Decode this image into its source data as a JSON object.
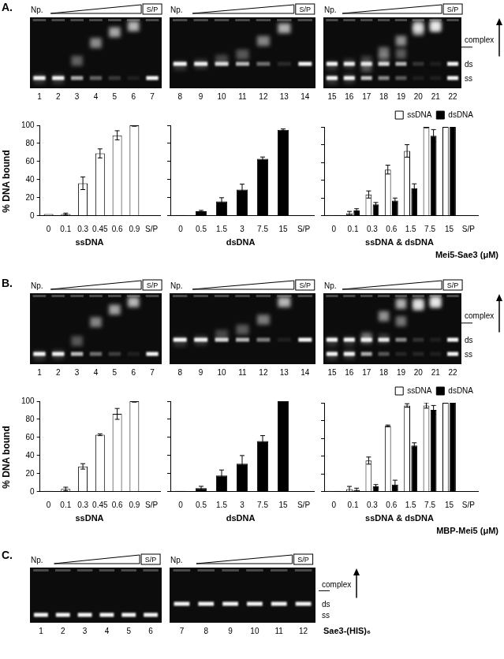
{
  "chart_data": [
    {
      "type": "bar",
      "title": "ssDNA",
      "categories": [
        "0",
        "0.1",
        "0.3",
        "0.45",
        "0.6",
        "0.9",
        "S/P"
      ],
      "values": [
        2,
        2,
        36,
        69,
        89,
        100,
        null
      ],
      "errors": [
        0,
        1,
        7,
        5,
        5,
        1,
        null
      ],
      "color": "#ffffff",
      "lanes": [
        1,
        2,
        3,
        4,
        5,
        6,
        7
      ],
      "ylim": [
        0,
        100
      ],
      "yticks": [
        0,
        20,
        40,
        60,
        80,
        100
      ],
      "grid": false
    },
    {
      "type": "bar",
      "title": "dsDNA",
      "categories": [
        "0",
        "0.5",
        "1.5",
        "3",
        "7.5",
        "15",
        "S/P"
      ],
      "values": [
        1,
        5,
        16,
        29,
        63,
        95,
        null
      ],
      "errors": [
        0,
        1,
        4,
        6,
        2,
        1,
        null
      ],
      "color": "#000000",
      "lanes": [
        8,
        9,
        10,
        11,
        12,
        13,
        14
      ],
      "ylim": [
        0,
        100
      ],
      "yticks": [
        0,
        20,
        40,
        60,
        80,
        100
      ],
      "grid": false,
      "tick_labels": "x"
    },
    {
      "type": "bar",
      "title": "ssDNA & dsDNA",
      "categories": [
        "0",
        "0.1",
        "0.3",
        "0.6",
        "1.5",
        "7.5",
        "15",
        "S/P"
      ],
      "series": [
        {
          "name": "ssDNA",
          "color": "#ffffff",
          "values": [
            1,
            3,
            24,
            52,
            73,
            100,
            100,
            null
          ],
          "errors": [
            0,
            2,
            4,
            5,
            7,
            1,
            0,
            null
          ]
        },
        {
          "name": "dsDNA",
          "color": "#000000",
          "values": [
            1,
            6,
            13,
            17,
            31,
            90,
            100,
            null
          ],
          "errors": [
            0,
            2,
            2,
            3,
            5,
            7,
            0,
            null
          ]
        }
      ],
      "lanes": [
        15,
        16,
        17,
        18,
        19,
        20,
        21,
        22
      ],
      "ylim": [
        0,
        100
      ],
      "yticks": [
        0,
        20,
        40,
        60,
        80,
        100
      ],
      "grid": false,
      "tick_labels": "x",
      "legend": "top-right"
    },
    {
      "type": "bar",
      "title": "ssDNA",
      "categories": [
        "0",
        "0.1",
        "0.3",
        "0.45",
        "0.6",
        "0.9",
        "S/P"
      ],
      "values": [
        1,
        3,
        28,
        63,
        86,
        100,
        null
      ],
      "errors": [
        0,
        2,
        3,
        1,
        6,
        1,
        null
      ],
      "color": "#ffffff",
      "lanes": [
        1,
        2,
        3,
        4,
        5,
        6,
        7
      ],
      "ylim": [
        0,
        100
      ],
      "yticks": [
        0,
        20,
        40,
        60,
        80,
        100
      ],
      "grid": false
    },
    {
      "type": "bar",
      "title": "dsDNA",
      "categories": [
        "0",
        "0.5",
        "1.5",
        "3",
        "7.5",
        "15",
        "S/P"
      ],
      "values": [
        1,
        4,
        18,
        31,
        56,
        100,
        null
      ],
      "errors": [
        0,
        2,
        6,
        9,
        6,
        1,
        null
      ],
      "color": "#000000",
      "lanes": [
        8,
        9,
        10,
        11,
        12,
        13,
        14
      ],
      "ylim": [
        0,
        100
      ],
      "yticks": [
        0,
        20,
        40,
        60,
        80,
        100
      ],
      "grid": false,
      "tick_labels": "x"
    },
    {
      "type": "bar",
      "title": "ssDNA & dsDNA",
      "categories": [
        "0",
        "0.1",
        "0.3",
        "0.6",
        "1.5",
        "7.5",
        "15",
        "S/P"
      ],
      "series": [
        {
          "name": "ssDNA",
          "color": "#ffffff",
          "values": [
            1,
            3,
            35,
            74,
            97,
            97,
            100,
            null
          ],
          "errors": [
            0,
            3,
            4,
            1,
            2,
            3,
            0,
            null
          ]
        },
        {
          "name": "dsDNA",
          "color": "#000000",
          "values": [
            1,
            2,
            6,
            8,
            52,
            92,
            100,
            null
          ],
          "errors": [
            0,
            2,
            2,
            5,
            3,
            5,
            0,
            null
          ]
        }
      ],
      "lanes": [
        15,
        16,
        17,
        18,
        19,
        20,
        21,
        22
      ],
      "ylim": [
        0,
        100
      ],
      "yticks": [
        0,
        20,
        40,
        60,
        80,
        100
      ],
      "grid": false,
      "tick_labels": "x",
      "legend": "top-right"
    }
  ],
  "figure": {
    "y_title": "% DNA bound",
    "gel_labels": {
      "left": "Np.",
      "right": "S/P",
      "complex": "complex",
      "ds": "ds",
      "ss": "ss"
    },
    "panels": [
      {
        "label": "A.",
        "x_title": "Mei5-Sae3 (μM)"
      },
      {
        "label": "B.",
        "x_title": "MBP-Mei5 (μM)"
      }
    ],
    "panel_c": {
      "label": "C.",
      "x_title": "Sae3-(HIS)₆",
      "lanes": [
        [
          1,
          2,
          3,
          4,
          5,
          6
        ],
        [
          7,
          8,
          9,
          10,
          11,
          12
        ]
      ]
    }
  }
}
